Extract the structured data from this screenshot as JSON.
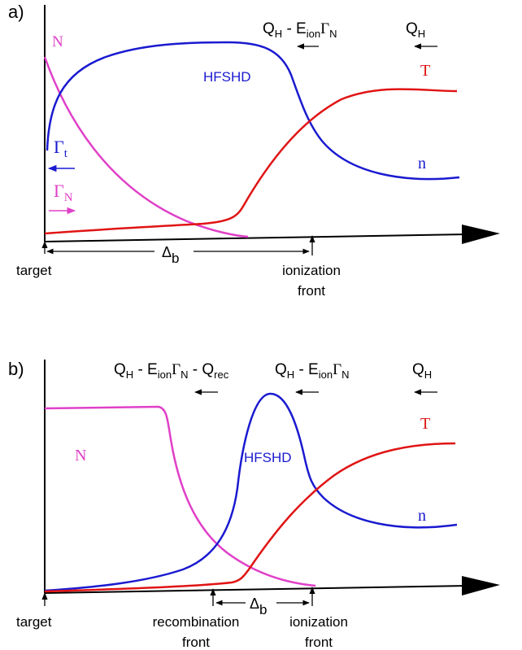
{
  "panel_a": {
    "panel_label": "a)",
    "labels": {
      "N": "N",
      "T": "T",
      "n": "n",
      "hfshd": "HFSHD",
      "gamma_t": "Γ",
      "gamma_t_sub": "t",
      "gamma_n": "Γ",
      "gamma_n_sub": "N",
      "target": "target",
      "delta": "Δ",
      "delta_sub": "b",
      "ionization_line1": "ionization",
      "ionization_line2": "front"
    },
    "flux_left": {
      "q": "Q",
      "q_sub": "H",
      "mid": " - E",
      "e_sub": "ion",
      "gamma": "Γ",
      "gamma_sub": "N"
    },
    "flux_right": {
      "q": "Q",
      "q_sub": "H"
    }
  },
  "panel_b": {
    "panel_label": "b)",
    "labels": {
      "N": "N",
      "T": "T",
      "n": "n",
      "hfshd": "HFSHD",
      "target": "target",
      "delta": "Δ",
      "delta_sub": "b",
      "recombination_line1": "recombination",
      "recombination_line2": "front",
      "ionization_line1": "ionization",
      "ionization_line2": "front"
    },
    "flux_left": {
      "q": "Q",
      "q_sub": "H",
      "mid": " - E",
      "e_sub": "ion",
      "gamma": "Γ",
      "gamma_sub": "N",
      "tail": " - Q",
      "rec_sub": "rec"
    },
    "flux_mid": {
      "q": "Q",
      "q_sub": "H",
      "mid": " - E",
      "e_sub": "ion",
      "gamma": "Γ",
      "gamma_sub": "N"
    },
    "flux_right": {
      "q": "Q",
      "q_sub": "H"
    }
  },
  "colors": {
    "N": "#e040c8",
    "n": "#1a1ad0",
    "T": "#e01414",
    "axis": "#000000"
  }
}
